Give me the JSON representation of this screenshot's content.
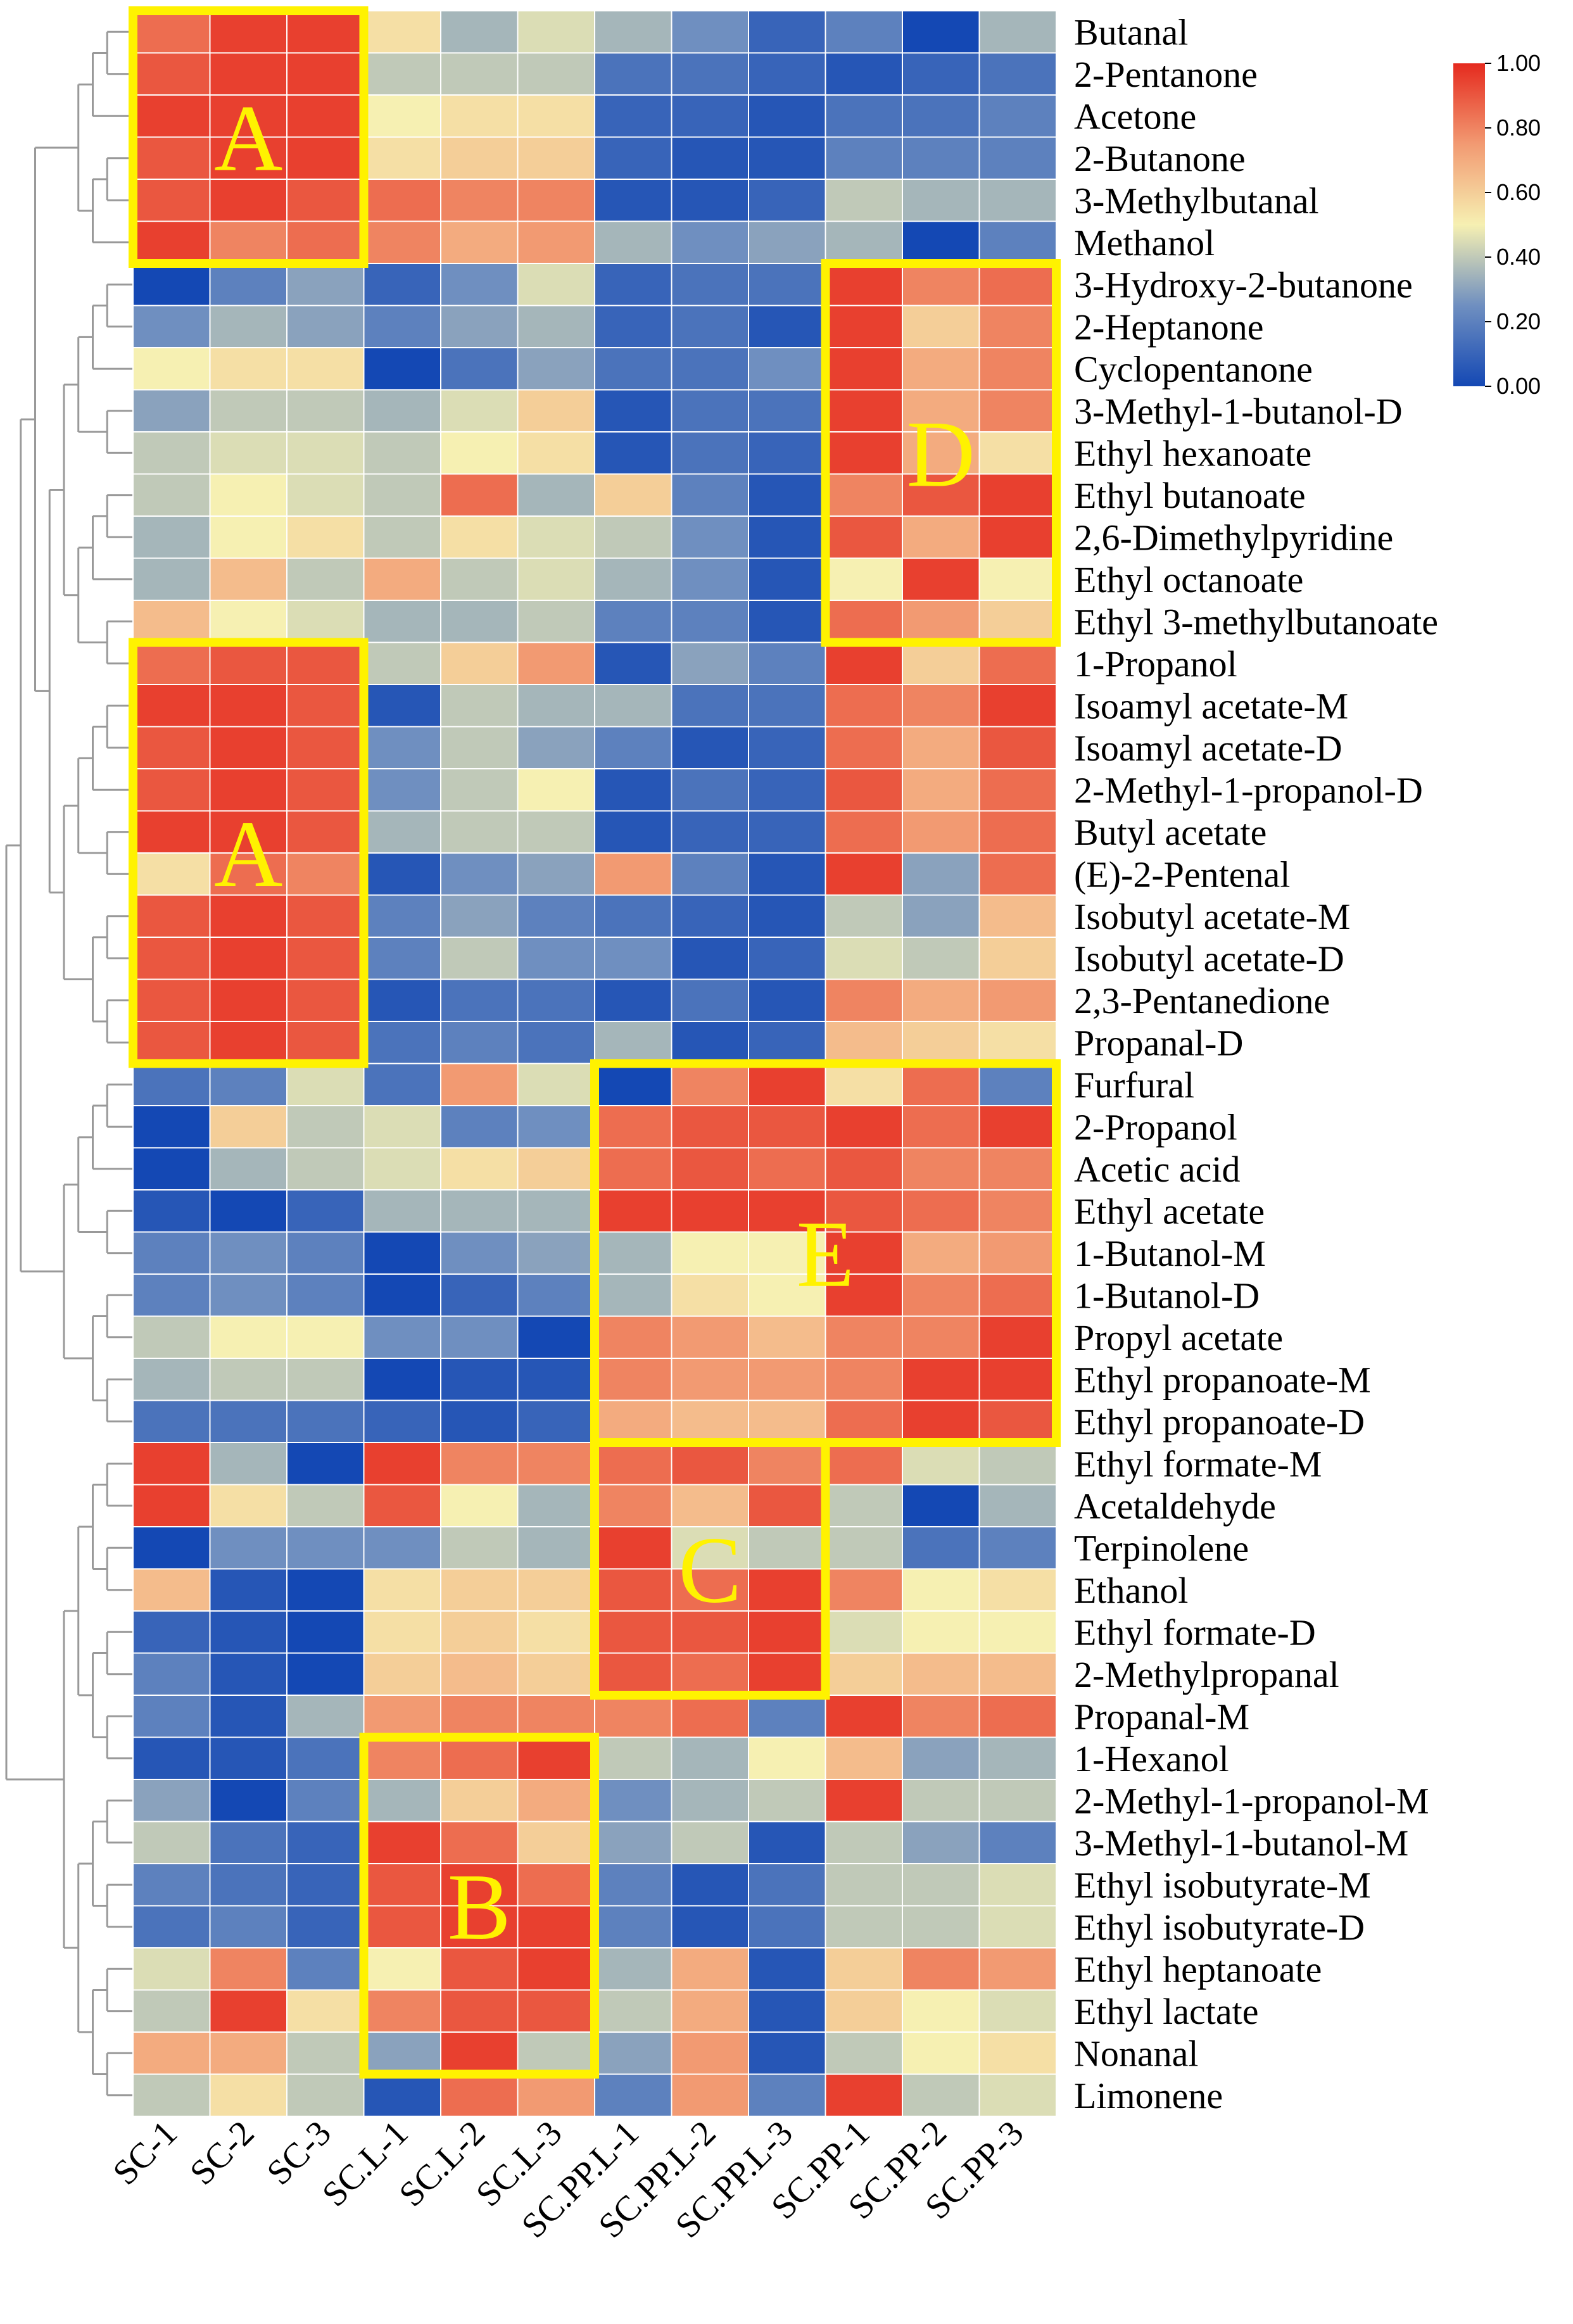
{
  "chart_data": {
    "type": "heatmap",
    "title": "",
    "columns": [
      "SC-1",
      "SC-2",
      "SC-3",
      "SC.L-1",
      "SC.L-2",
      "SC.L-3",
      "SC.PP.L-1",
      "SC.PP.L-2",
      "SC.PP.L-3",
      "SC.PP-1",
      "SC.PP-2",
      "SC.PP-3"
    ],
    "rows": [
      "Butanal",
      "2-Pentanone",
      "Acetone",
      "2-Butanone",
      "3-Methylbutanal",
      "Methanol",
      "3-Hydroxy-2-butanone",
      "2-Heptanone",
      "Cyclopentanone",
      "3-Methyl-1-butanol-D",
      "Ethyl hexanoate",
      "Ethyl butanoate",
      "2,6-Dimethylpyridine",
      "Ethyl octanoate",
      "Ethyl 3-methylbutanoate",
      "1-Propanol",
      "Isoamyl acetate-M",
      "Isoamyl acetate-D",
      "2-Methyl-1-propanol-D",
      "Butyl acetate",
      "(E)-2-Pentenal",
      "Isobutyl acetate-M",
      "Isobutyl acetate-D",
      "2,3-Pentanedione",
      "Propanal-D",
      "Furfural",
      "2-Propanol",
      "Acetic acid",
      "Ethyl acetate",
      "1-Butanol-M",
      "1-Butanol-D",
      "Propyl acetate",
      "Ethyl propanoate-M",
      "Ethyl propanoate-D",
      "Ethyl formate-M",
      "Acetaldehyde",
      "Terpinolene",
      "Ethanol",
      "Ethyl formate-D",
      "2-Methylpropanal",
      "Propanal-M",
      "1-Hexanol",
      "2-Methyl-1-propanol-M",
      "3-Methyl-1-butanol-M",
      "Ethyl isobutyrate-M",
      "Ethyl isobutyrate-D",
      "Ethyl heptanoate",
      "Ethyl lactate",
      "Nonanal",
      "Limonene"
    ],
    "values": [
      [
        0.85,
        0.95,
        0.95,
        0.55,
        0.35,
        0.45,
        0.35,
        0.25,
        0.1,
        0.2,
        0.0,
        0.35
      ],
      [
        0.9,
        0.95,
        0.95,
        0.4,
        0.4,
        0.4,
        0.15,
        0.15,
        0.1,
        0.05,
        0.1,
        0.15
      ],
      [
        0.95,
        0.95,
        0.95,
        0.5,
        0.55,
        0.55,
        0.1,
        0.1,
        0.05,
        0.15,
        0.15,
        0.2
      ],
      [
        0.9,
        0.95,
        0.95,
        0.55,
        0.6,
        0.6,
        0.1,
        0.05,
        0.05,
        0.2,
        0.2,
        0.2
      ],
      [
        0.9,
        0.95,
        0.9,
        0.85,
        0.8,
        0.8,
        0.05,
        0.05,
        0.1,
        0.4,
        0.35,
        0.35
      ],
      [
        0.95,
        0.8,
        0.85,
        0.8,
        0.7,
        0.75,
        0.35,
        0.25,
        0.3,
        0.35,
        0.0,
        0.2
      ],
      [
        0.0,
        0.2,
        0.3,
        0.1,
        0.25,
        0.45,
        0.1,
        0.15,
        0.15,
        0.95,
        0.8,
        0.85
      ],
      [
        0.25,
        0.35,
        0.3,
        0.2,
        0.3,
        0.35,
        0.1,
        0.15,
        0.05,
        0.95,
        0.6,
        0.8
      ],
      [
        0.5,
        0.55,
        0.55,
        0.0,
        0.15,
        0.3,
        0.15,
        0.15,
        0.25,
        0.95,
        0.7,
        0.8
      ],
      [
        0.3,
        0.4,
        0.4,
        0.35,
        0.45,
        0.6,
        0.05,
        0.15,
        0.15,
        0.95,
        0.7,
        0.8
      ],
      [
        0.4,
        0.45,
        0.45,
        0.4,
        0.5,
        0.55,
        0.05,
        0.15,
        0.1,
        0.95,
        0.7,
        0.55
      ],
      [
        0.4,
        0.5,
        0.45,
        0.4,
        0.85,
        0.35,
        0.6,
        0.2,
        0.05,
        0.8,
        0.9,
        0.95
      ],
      [
        0.35,
        0.5,
        0.55,
        0.4,
        0.55,
        0.45,
        0.4,
        0.25,
        0.05,
        0.9,
        0.7,
        0.95
      ],
      [
        0.35,
        0.65,
        0.4,
        0.7,
        0.4,
        0.45,
        0.35,
        0.25,
        0.05,
        0.5,
        0.95,
        0.5
      ],
      [
        0.65,
        0.5,
        0.45,
        0.35,
        0.35,
        0.4,
        0.2,
        0.2,
        0.05,
        0.85,
        0.75,
        0.6
      ],
      [
        0.85,
        0.9,
        0.9,
        0.4,
        0.6,
        0.75,
        0.05,
        0.3,
        0.2,
        0.95,
        0.6,
        0.85
      ],
      [
        0.95,
        0.95,
        0.9,
        0.05,
        0.4,
        0.35,
        0.35,
        0.15,
        0.15,
        0.85,
        0.8,
        0.95
      ],
      [
        0.9,
        0.95,
        0.9,
        0.25,
        0.4,
        0.3,
        0.2,
        0.05,
        0.1,
        0.85,
        0.7,
        0.9
      ],
      [
        0.9,
        0.95,
        0.9,
        0.25,
        0.4,
        0.5,
        0.05,
        0.15,
        0.1,
        0.9,
        0.7,
        0.85
      ],
      [
        0.95,
        0.95,
        0.9,
        0.35,
        0.4,
        0.4,
        0.05,
        0.1,
        0.1,
        0.85,
        0.75,
        0.85
      ],
      [
        0.55,
        0.85,
        0.8,
        0.05,
        0.25,
        0.3,
        0.75,
        0.2,
        0.05,
        0.95,
        0.3,
        0.85
      ],
      [
        0.9,
        0.95,
        0.9,
        0.2,
        0.3,
        0.2,
        0.15,
        0.1,
        0.05,
        0.4,
        0.3,
        0.65
      ],
      [
        0.9,
        0.95,
        0.9,
        0.2,
        0.4,
        0.25,
        0.25,
        0.05,
        0.1,
        0.45,
        0.4,
        0.6
      ],
      [
        0.9,
        0.95,
        0.9,
        0.05,
        0.15,
        0.15,
        0.05,
        0.15,
        0.05,
        0.8,
        0.7,
        0.75
      ],
      [
        0.9,
        0.95,
        0.9,
        0.15,
        0.2,
        0.15,
        0.35,
        0.05,
        0.1,
        0.65,
        0.6,
        0.55
      ],
      [
        0.15,
        0.2,
        0.45,
        0.15,
        0.75,
        0.45,
        0.0,
        0.8,
        0.95,
        0.55,
        0.85,
        0.2
      ],
      [
        0.0,
        0.6,
        0.4,
        0.45,
        0.2,
        0.25,
        0.85,
        0.9,
        0.9,
        0.95,
        0.85,
        0.95
      ],
      [
        0.0,
        0.35,
        0.4,
        0.45,
        0.55,
        0.6,
        0.85,
        0.9,
        0.85,
        0.9,
        0.8,
        0.8
      ],
      [
        0.05,
        0.0,
        0.1,
        0.35,
        0.35,
        0.35,
        0.95,
        0.95,
        0.95,
        0.9,
        0.85,
        0.8
      ],
      [
        0.2,
        0.25,
        0.2,
        0.0,
        0.25,
        0.3,
        0.35,
        0.5,
        0.5,
        0.95,
        0.7,
        0.75
      ],
      [
        0.2,
        0.25,
        0.2,
        0.0,
        0.1,
        0.2,
        0.35,
        0.55,
        0.5,
        0.95,
        0.8,
        0.85
      ],
      [
        0.4,
        0.5,
        0.5,
        0.25,
        0.25,
        0.0,
        0.8,
        0.75,
        0.65,
        0.8,
        0.8,
        0.95
      ],
      [
        0.35,
        0.4,
        0.4,
        0.0,
        0.05,
        0.05,
        0.8,
        0.75,
        0.75,
        0.8,
        0.95,
        0.95
      ],
      [
        0.15,
        0.15,
        0.15,
        0.1,
        0.05,
        0.1,
        0.7,
        0.65,
        0.65,
        0.85,
        0.95,
        0.9
      ],
      [
        0.95,
        0.35,
        0.0,
        0.95,
        0.8,
        0.8,
        0.85,
        0.9,
        0.8,
        0.85,
        0.45,
        0.4
      ],
      [
        0.95,
        0.55,
        0.4,
        0.9,
        0.5,
        0.35,
        0.8,
        0.65,
        0.9,
        0.4,
        0.0,
        0.35
      ],
      [
        0.0,
        0.25,
        0.25,
        0.25,
        0.4,
        0.35,
        0.95,
        0.45,
        0.4,
        0.4,
        0.15,
        0.2
      ],
      [
        0.65,
        0.05,
        0.0,
        0.55,
        0.6,
        0.6,
        0.9,
        0.85,
        0.95,
        0.8,
        0.5,
        0.55
      ],
      [
        0.1,
        0.05,
        0.0,
        0.55,
        0.6,
        0.55,
        0.9,
        0.9,
        0.95,
        0.45,
        0.5,
        0.5
      ],
      [
        0.2,
        0.05,
        0.0,
        0.6,
        0.65,
        0.6,
        0.9,
        0.85,
        0.95,
        0.6,
        0.65,
        0.65
      ],
      [
        0.2,
        0.05,
        0.35,
        0.75,
        0.8,
        0.8,
        0.8,
        0.85,
        0.2,
        0.95,
        0.8,
        0.85
      ],
      [
        0.05,
        0.05,
        0.15,
        0.8,
        0.85,
        0.95,
        0.4,
        0.35,
        0.5,
        0.65,
        0.3,
        0.35
      ],
      [
        0.3,
        0.0,
        0.2,
        0.35,
        0.6,
        0.7,
        0.25,
        0.35,
        0.4,
        0.95,
        0.4,
        0.4
      ],
      [
        0.4,
        0.15,
        0.1,
        0.95,
        0.85,
        0.6,
        0.3,
        0.4,
        0.05,
        0.4,
        0.3,
        0.2
      ],
      [
        0.2,
        0.15,
        0.1,
        0.9,
        0.95,
        0.85,
        0.2,
        0.05,
        0.15,
        0.4,
        0.4,
        0.45
      ],
      [
        0.15,
        0.2,
        0.1,
        0.9,
        0.95,
        0.95,
        0.2,
        0.05,
        0.15,
        0.4,
        0.4,
        0.45
      ],
      [
        0.45,
        0.8,
        0.2,
        0.5,
        0.9,
        0.95,
        0.35,
        0.7,
        0.05,
        0.6,
        0.8,
        0.75
      ],
      [
        0.4,
        0.95,
        0.55,
        0.8,
        0.9,
        0.9,
        0.4,
        0.7,
        0.05,
        0.6,
        0.5,
        0.45
      ],
      [
        0.7,
        0.7,
        0.4,
        0.3,
        0.95,
        0.4,
        0.3,
        0.75,
        0.05,
        0.4,
        0.5,
        0.55
      ],
      [
        0.4,
        0.55,
        0.4,
        0.05,
        0.85,
        0.75,
        0.2,
        0.75,
        0.2,
        0.95,
        0.4,
        0.45
      ]
    ],
    "colorbar": {
      "min": 0.0,
      "max": 1.0,
      "tick_values": [
        1.0,
        0.8,
        0.6,
        0.4,
        0.2,
        0.0
      ],
      "tick_labels": [
        "1.00",
        "0.80",
        "0.60",
        "0.40",
        "0.20",
        "0.00"
      ],
      "colormap": [
        "#1448B4",
        "#6F8FC0",
        "#F6F0B2",
        "#F29A72",
        "#E52A1E"
      ]
    },
    "cluster_boxes": [
      {
        "label": "A",
        "row_start": 0,
        "row_end": 5,
        "col_start": 0,
        "col_end": 2
      },
      {
        "label": "D",
        "row_start": 6,
        "row_end": 14,
        "col_start": 9,
        "col_end": 11
      },
      {
        "label": "A",
        "row_start": 15,
        "row_end": 24,
        "col_start": 0,
        "col_end": 2
      },
      {
        "label": "E",
        "row_start": 25,
        "row_end": 33,
        "col_start": 6,
        "col_end": 11
      },
      {
        "label": "C",
        "row_start": 34,
        "row_end": 39,
        "col_start": 6,
        "col_end": 8
      },
      {
        "label": "B",
        "row_start": 41,
        "row_end": 48,
        "col_start": 3,
        "col_end": 5
      }
    ],
    "box_color": "#FFF200",
    "dendrogram_color": "#999999",
    "row_clusters": [
      [
        0,
        5
      ],
      [
        6,
        24
      ],
      [
        25,
        33
      ],
      [
        34,
        49
      ]
    ],
    "legend_position": "top-right"
  }
}
